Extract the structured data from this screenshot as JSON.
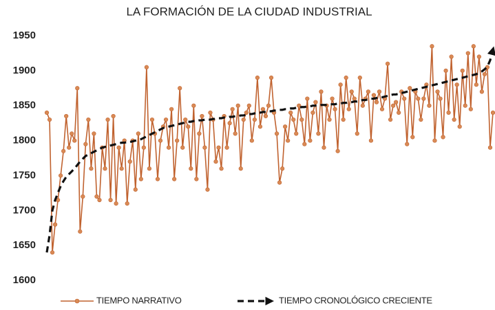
{
  "chart_data": {
    "type": "line",
    "title": "LA FORMACIÓN DE LA CIUDAD INDUSTRIAL",
    "ylim": [
      1600,
      1950
    ],
    "yticks": [
      1600,
      1650,
      1700,
      1750,
      1800,
      1850,
      1900,
      1950
    ],
    "grid": false,
    "legend": "bottom",
    "series": [
      {
        "name": "TIEMPO NARRATIVO",
        "color": "#c0622f",
        "style": "solid-markers",
        "values": [
          1840,
          1830,
          1640,
          1680,
          1715,
          1750,
          1785,
          1835,
          1790,
          1810,
          1800,
          1875,
          1670,
          1720,
          1795,
          1830,
          1760,
          1810,
          1720,
          1715,
          1790,
          1760,
          1830,
          1715,
          1835,
          1710,
          1790,
          1760,
          1800,
          1710,
          1770,
          1800,
          1730,
          1810,
          1745,
          1790,
          1905,
          1760,
          1830,
          1810,
          1745,
          1800,
          1820,
          1830,
          1790,
          1845,
          1745,
          1800,
          1875,
          1790,
          1830,
          1820,
          1760,
          1850,
          1745,
          1810,
          1835,
          1790,
          1730,
          1840,
          1830,
          1770,
          1790,
          1760,
          1835,
          1790,
          1825,
          1845,
          1810,
          1850,
          1760,
          1830,
          1840,
          1850,
          1800,
          1830,
          1890,
          1820,
          1845,
          1835,
          1850,
          1890,
          1840,
          1810,
          1740,
          1760,
          1820,
          1800,
          1840,
          1830,
          1810,
          1850,
          1830,
          1795,
          1860,
          1800,
          1840,
          1855,
          1810,
          1870,
          1790,
          1850,
          1830,
          1860,
          1845,
          1785,
          1880,
          1830,
          1890,
          1845,
          1870,
          1860,
          1810,
          1890,
          1850,
          1860,
          1870,
          1800,
          1865,
          1855,
          1870,
          1845,
          1860,
          1910,
          1830,
          1850,
          1855,
          1840,
          1870,
          1860,
          1795,
          1875,
          1805,
          1870,
          1860,
          1830,
          1860,
          1880,
          1850,
          1935,
          1800,
          1870,
          1860,
          1805,
          1900,
          1840,
          1920,
          1830,
          1880,
          1820,
          1900,
          1850,
          1925,
          1845,
          1935,
          1880,
          1920,
          1870,
          1895,
          1905,
          1790,
          1840
        ]
      },
      {
        "name": "TIEMPO CRONOLÓGICO CRECIENTE",
        "color": "#111111",
        "style": "dashed-arrow",
        "values": [
          1640,
          1665,
          1700,
          1715,
          1725,
          1735,
          1742,
          1748,
          1752,
          1756,
          1760,
          1765,
          1770,
          1774,
          1778,
          1780,
          1782,
          1784,
          1786,
          1788,
          1790,
          1791,
          1792,
          1793,
          1794,
          1795,
          1796,
          1797,
          1797,
          1798,
          1798,
          1799,
          1800,
          1801,
          1802,
          1804,
          1806,
          1808,
          1810,
          1812,
          1814,
          1816,
          1818,
          1819,
          1820,
          1821,
          1822,
          1823,
          1824,
          1825,
          1826,
          1827,
          1827,
          1828,
          1828,
          1829,
          1829,
          1830,
          1830,
          1830,
          1831,
          1831,
          1832,
          1832,
          1833,
          1833,
          1834,
          1834,
          1835,
          1835,
          1836,
          1836,
          1837,
          1838,
          1838,
          1839,
          1840,
          1840,
          1841,
          1841,
          1842,
          1842,
          1843,
          1843,
          1844,
          1844,
          1845,
          1845,
          1846,
          1846,
          1847,
          1847,
          1848,
          1848,
          1849,
          1849,
          1850,
          1850,
          1850,
          1851,
          1851,
          1851,
          1852,
          1852,
          1852,
          1853,
          1853,
          1854,
          1854,
          1855,
          1855,
          1856,
          1856,
          1857,
          1858,
          1858,
          1859,
          1860,
          1860,
          1861,
          1862,
          1862,
          1863,
          1864,
          1865,
          1866,
          1866,
          1867,
          1868,
          1869,
          1870,
          1871,
          1872,
          1873,
          1874,
          1875,
          1876,
          1877,
          1878,
          1879,
          1880,
          1881,
          1882,
          1883,
          1884,
          1885,
          1886,
          1887,
          1888,
          1889,
          1890,
          1891,
          1892,
          1893,
          1894,
          1895,
          1897,
          1899,
          1902,
          1906,
          1915,
          1930
        ]
      }
    ]
  }
}
